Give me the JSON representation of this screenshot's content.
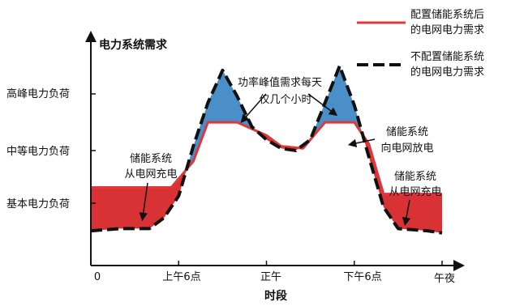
{
  "chart_data": {
    "type": "area",
    "title": "",
    "ylabel": "电力系统需求",
    "xlabel": "时段",
    "x_ticks": [
      {
        "t": 0,
        "label": "0"
      },
      {
        "t": 6,
        "label": "上午6点"
      },
      {
        "t": 12,
        "label": "正午"
      },
      {
        "t": 18,
        "label": "下午6点"
      },
      {
        "t": 24,
        "label": "午夜"
      }
    ],
    "y_ticks": [
      {
        "level": "high",
        "label": "高峰电力负荷"
      },
      {
        "level": "mid",
        "label": "中等电力负荷"
      },
      {
        "level": "base",
        "label": "基本电力负荷"
      }
    ],
    "legend": {
      "placement": "top-right",
      "items": [
        {
          "label_line1": "配置储能系统后",
          "label_line2": "的电网电力需求",
          "style": "solid",
          "color": "#e0373b"
        },
        {
          "label_line1": "不配置储能系统",
          "label_line2": "的电网电力需求",
          "style": "dashed",
          "color": "#111111"
        }
      ]
    },
    "annotations": {
      "peak_line1": "功率峰值需求每天",
      "peak_line2": "仅几个小时",
      "discharge_line1": "储能系统",
      "discharge_line2": "向电网放电",
      "charge_left_line1": "储能系统",
      "charge_left_line2": "从电网充电",
      "charge_right_line1": "储能系统",
      "charge_right_line2": "从电网充电"
    },
    "series": [
      {
        "name": "配置储能系统后的电网电力需求",
        "style": "solid",
        "t": [
          0,
          3,
          5.5,
          7,
          8,
          10,
          12,
          13,
          14.5,
          16,
          18,
          19,
          20,
          24
        ],
        "v": [
          36,
          36,
          36,
          48,
          66,
          66,
          60,
          55,
          54,
          66,
          66,
          56,
          33,
          33
        ]
      },
      {
        "name": "不配置储能系统的电网电力需求",
        "style": "dashed",
        "t": [
          0,
          2,
          4,
          5,
          6,
          7,
          8,
          9,
          10,
          11,
          12,
          13,
          14,
          15,
          16,
          17,
          18,
          19,
          20,
          21,
          23,
          24
        ],
        "v": [
          16,
          17,
          17,
          22,
          32,
          55,
          75,
          90,
          78,
          64,
          58,
          54,
          53,
          58,
          75,
          92,
          74,
          50,
          27,
          17,
          16,
          15
        ]
      }
    ],
    "colors": {
      "solid_line": "#e0373b",
      "charge_fill": "#d93235",
      "discharge_fill": "#4a8fc8",
      "axis": "#111111"
    }
  }
}
